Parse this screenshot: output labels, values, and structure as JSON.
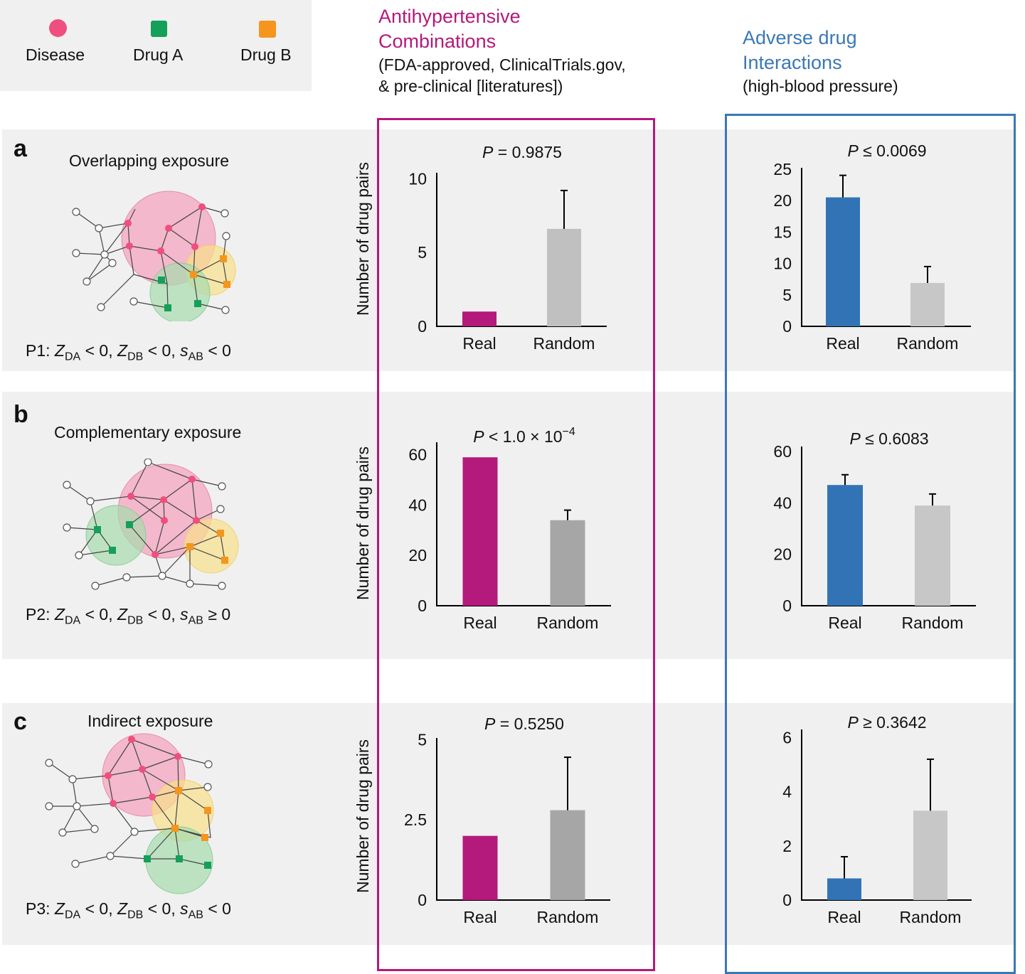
{
  "legend": {
    "items": [
      {
        "label": "Disease",
        "color": "#ef4f7e",
        "shape": "circle"
      },
      {
        "label": "Drug A",
        "color": "#14a05a",
        "shape": "square"
      },
      {
        "label": "Drug B",
        "color": "#f4961e",
        "shape": "square"
      }
    ]
  },
  "headers": {
    "anti": {
      "line1": "Antihypertensive",
      "line2": "Combinations",
      "sub1": "(FDA-approved, ClinicalTrials.gov,",
      "sub2": "& pre-clinical [literatures])",
      "color": "#b4197c"
    },
    "adv": {
      "line1": "Adverse drug",
      "line2": "Interactions",
      "sub1": "(high-blood pressure)",
      "color": "#3a78b5"
    }
  },
  "ylabel": "Number of drug pairs",
  "panels": [
    {
      "letter": "a",
      "title": "Overlapping exposure",
      "formula": {
        "prefix": "P1: ",
        "s_rel": "< 0"
      }
    },
    {
      "letter": "b",
      "title": "Complementary exposure",
      "formula": {
        "prefix": "P2: ",
        "s_rel": "≥ 0"
      }
    },
    {
      "letter": "c",
      "title": "Indirect exposure",
      "formula": {
        "prefix": "P3: ",
        "s_rel": "< 0"
      }
    }
  ],
  "formula_common": {
    "z": "Z",
    "da": "DA",
    "db": "DB",
    "s": "s",
    "ab": "AB",
    "lt0": "< 0,"
  },
  "chart_data": [
    {
      "type": "bar",
      "panel": "a",
      "column": "antihypertensive",
      "p_italic": "P",
      "p_rest": " = 0.9875",
      "categories": [
        "Real",
        "Random"
      ],
      "values": [
        1,
        6.6
      ],
      "errors": [
        0,
        2.6
      ],
      "yticks": [
        "0",
        "5",
        "10"
      ],
      "ylim": [
        0,
        10.4
      ],
      "colors": [
        "#b4197c",
        "#c0c0c0"
      ]
    },
    {
      "type": "bar",
      "panel": "a",
      "column": "adverse",
      "p_italic": "P",
      "p_rest": " ≤ 0.0069",
      "categories": [
        "Real",
        "Random"
      ],
      "values": [
        20.5,
        6.9
      ],
      "errors": [
        3.5,
        2.6
      ],
      "yticks": [
        "0",
        "5",
        "10",
        "15",
        "20",
        "25"
      ],
      "ylim": [
        0,
        25.2
      ],
      "colors": [
        "#3273b5",
        "#c7c7c7"
      ]
    },
    {
      "type": "bar",
      "panel": "b",
      "column": "antihypertensive",
      "p_italic": "P",
      "p_rest": " < 1.0 × 10",
      "p_sup": "−4",
      "categories": [
        "Real",
        "Random"
      ],
      "values": [
        59,
        34
      ],
      "errors": [
        0,
        4
      ],
      "yticks": [
        "0",
        "20",
        "40",
        "60"
      ],
      "ylim": [
        0,
        65
      ],
      "colors": [
        "#b4197c",
        "#a6a6a6"
      ]
    },
    {
      "type": "bar",
      "panel": "b",
      "column": "adverse",
      "p_italic": "P",
      "p_rest": " ≤ 0.6083",
      "categories": [
        "Real",
        "Random"
      ],
      "values": [
        47,
        39
      ],
      "errors": [
        4,
        4.5
      ],
      "yticks": [
        "0",
        "20",
        "40",
        "60"
      ],
      "ylim": [
        0,
        62
      ],
      "colors": [
        "#3273b5",
        "#c7c7c7"
      ]
    },
    {
      "type": "bar",
      "panel": "c",
      "column": "antihypertensive",
      "p_italic": "P",
      "p_rest": " = 0.5250",
      "categories": [
        "Real",
        "Random"
      ],
      "values": [
        2,
        2.8
      ],
      "errors": [
        0,
        1.65
      ],
      "yticks": [
        "0",
        "2.5",
        "5"
      ],
      "ylim": [
        0,
        5.05
      ],
      "colors": [
        "#b4197c",
        "#a6a6a6"
      ]
    },
    {
      "type": "bar",
      "panel": "c",
      "column": "adverse",
      "p_italic": "P",
      "p_rest": " ≥ 0.3642",
      "categories": [
        "Real",
        "Random"
      ],
      "values": [
        0.8,
        3.3
      ],
      "errors": [
        0.8,
        1.9
      ],
      "yticks": [
        "0",
        "2",
        "4",
        "6"
      ],
      "ylim": [
        0,
        6.3
      ],
      "colors": [
        "#3273b5",
        "#c7c7c7"
      ]
    }
  ]
}
